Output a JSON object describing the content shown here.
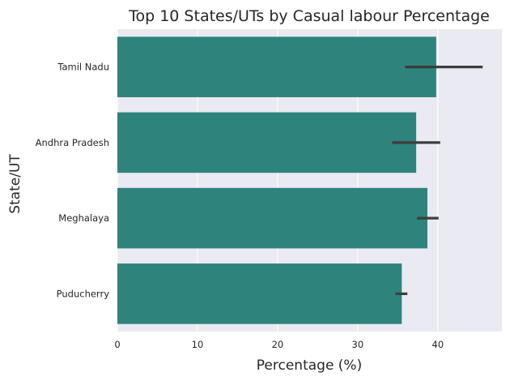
{
  "chart_data": {
    "type": "bar",
    "orientation": "horizontal",
    "title": "Top 10 States/UTs by Casual labour Percentage",
    "xlabel": "Percentage (%)",
    "ylabel": "State/UT",
    "categories": [
      "Tamil Nadu",
      "Andhra Pradesh",
      "Meghalaya",
      "Puducherry"
    ],
    "values": [
      39.8,
      37.3,
      38.7,
      35.5
    ],
    "error_bars": [
      [
        35.9,
        45.6
      ],
      [
        34.3,
        40.3
      ],
      [
        37.4,
        40.1
      ],
      [
        34.7,
        36.2
      ]
    ],
    "xlim": [
      0,
      48
    ],
    "xticks": [
      0,
      10,
      20,
      30,
      40
    ],
    "grid": true,
    "bar_color": "#2e847c",
    "error_color": "#3d3d3d",
    "background_color": "#eaeaf2"
  }
}
